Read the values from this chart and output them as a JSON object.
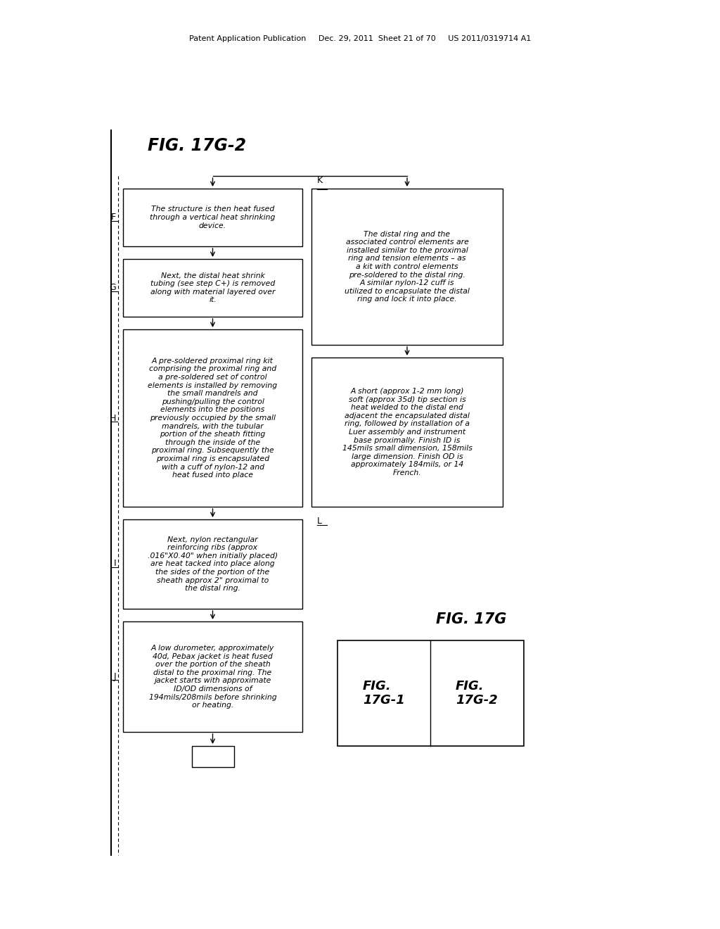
{
  "bg_color": "#ffffff",
  "header_text": "Patent Application Publication     Dec. 29, 2011  Sheet 21 of 70     US 2011/0319714 A1",
  "fig_title": "FIG. 17G-2",
  "fig17g_title": "FIG. 17G",
  "fig17g1_label": "FIG.\n17G-1",
  "fig17g2_label": "FIG.\n17G-2",
  "F_text": "The structure is then heat fused\nthrough a vertical heat shrinking\ndevice.",
  "G_text": "Next, the distal heat shrink\ntubing (see step C+) is removed\nalong with material layered over\nit.",
  "H_text": "A pre-soldered proximal ring kit\ncomprising the proximal ring and\na pre-soldered set of control\nelements is installed by removing\nthe small mandrels and\npushing/pulling the control\nelements into the positions\npreviously occupied by the small\nmandrels, with the tubular\nportion of the sheath fitting\nthrough the inside of the\nproximal ring. Subsequently the\nproximal ring is encapsulated\nwith a cuff of nylon-12 and\nheat fused into place",
  "I_text": "Next, nylon rectangular\nreinforcing ribs (approx\n.016\"X0.40\" when initially placed)\nare heat tacked into place along\nthe sides of the portion of the\nsheath approx 2\" proximal to\nthe distal ring.",
  "J_text": "A low durometer, approximately\n40d, Pebax jacket is heat fused\nover the portion of the sheath\ndistal to the proximal ring. The\njacket starts with approximate\nID/OD dimensions of\n194mils/208mils before shrinking\nor heating.",
  "K_text": "The distal ring and the\nassociated control elements are\ninstalled similar to the proximal\nring and tension elements – as\na kit with control elements\npre-soldered to the distal ring.\nA similar nylon-12 cuff is\nutilized to encapsulate the distal\nring and lock it into place.",
  "L_text": "A short (approx 1-2 mm long)\nsoft (approx 35d) tip section is\nheat welded to the distal end\nadjacent the encapsulated distal\nring, followed by installation of a\nLuer assembly and instrument\nbase proximally. Finish ID is\n145mils small dimension, 158mils\nlarge dimension. Finish OD is\napproximately 184mils, or 14\nFrench."
}
